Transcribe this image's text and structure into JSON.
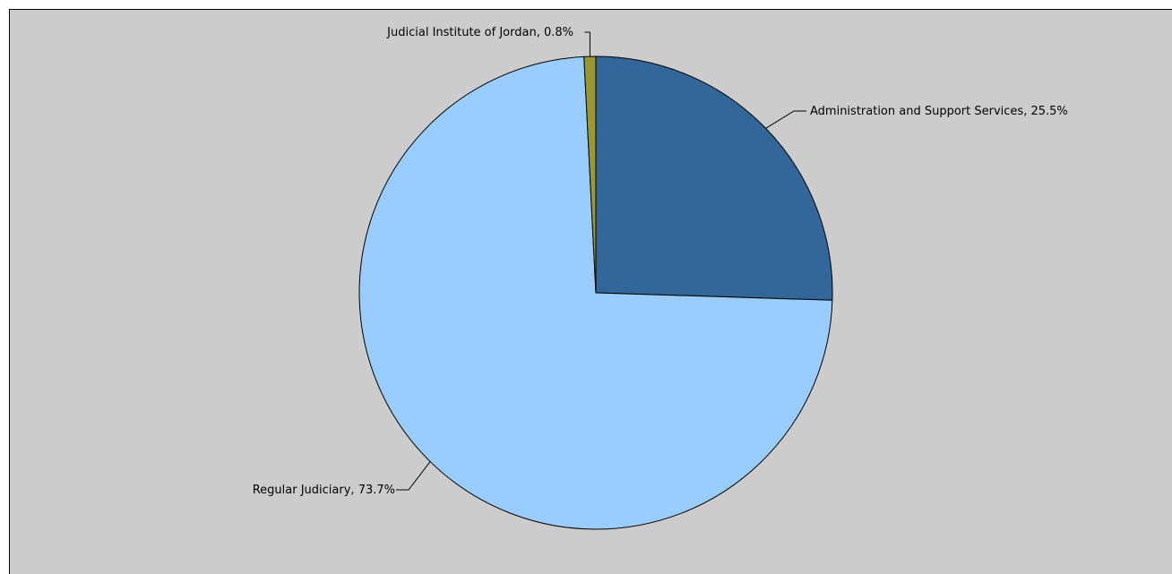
{
  "chart_data": {
    "type": "pie",
    "slices": [
      {
        "label": "Administration and Support Services, 25.5%",
        "value": 25.5,
        "color": "#336699"
      },
      {
        "label": "Regular Judiciary, 73.7%",
        "value": 73.7,
        "color": "#99ccff"
      },
      {
        "label": "Judicial Institute of Jordan, 0.8%",
        "value": 0.8,
        "color": "#999933"
      }
    ],
    "start_angle": "12 o'clock",
    "direction": "clockwise",
    "background_color": "#cccccc",
    "outline_color": "#000000"
  }
}
